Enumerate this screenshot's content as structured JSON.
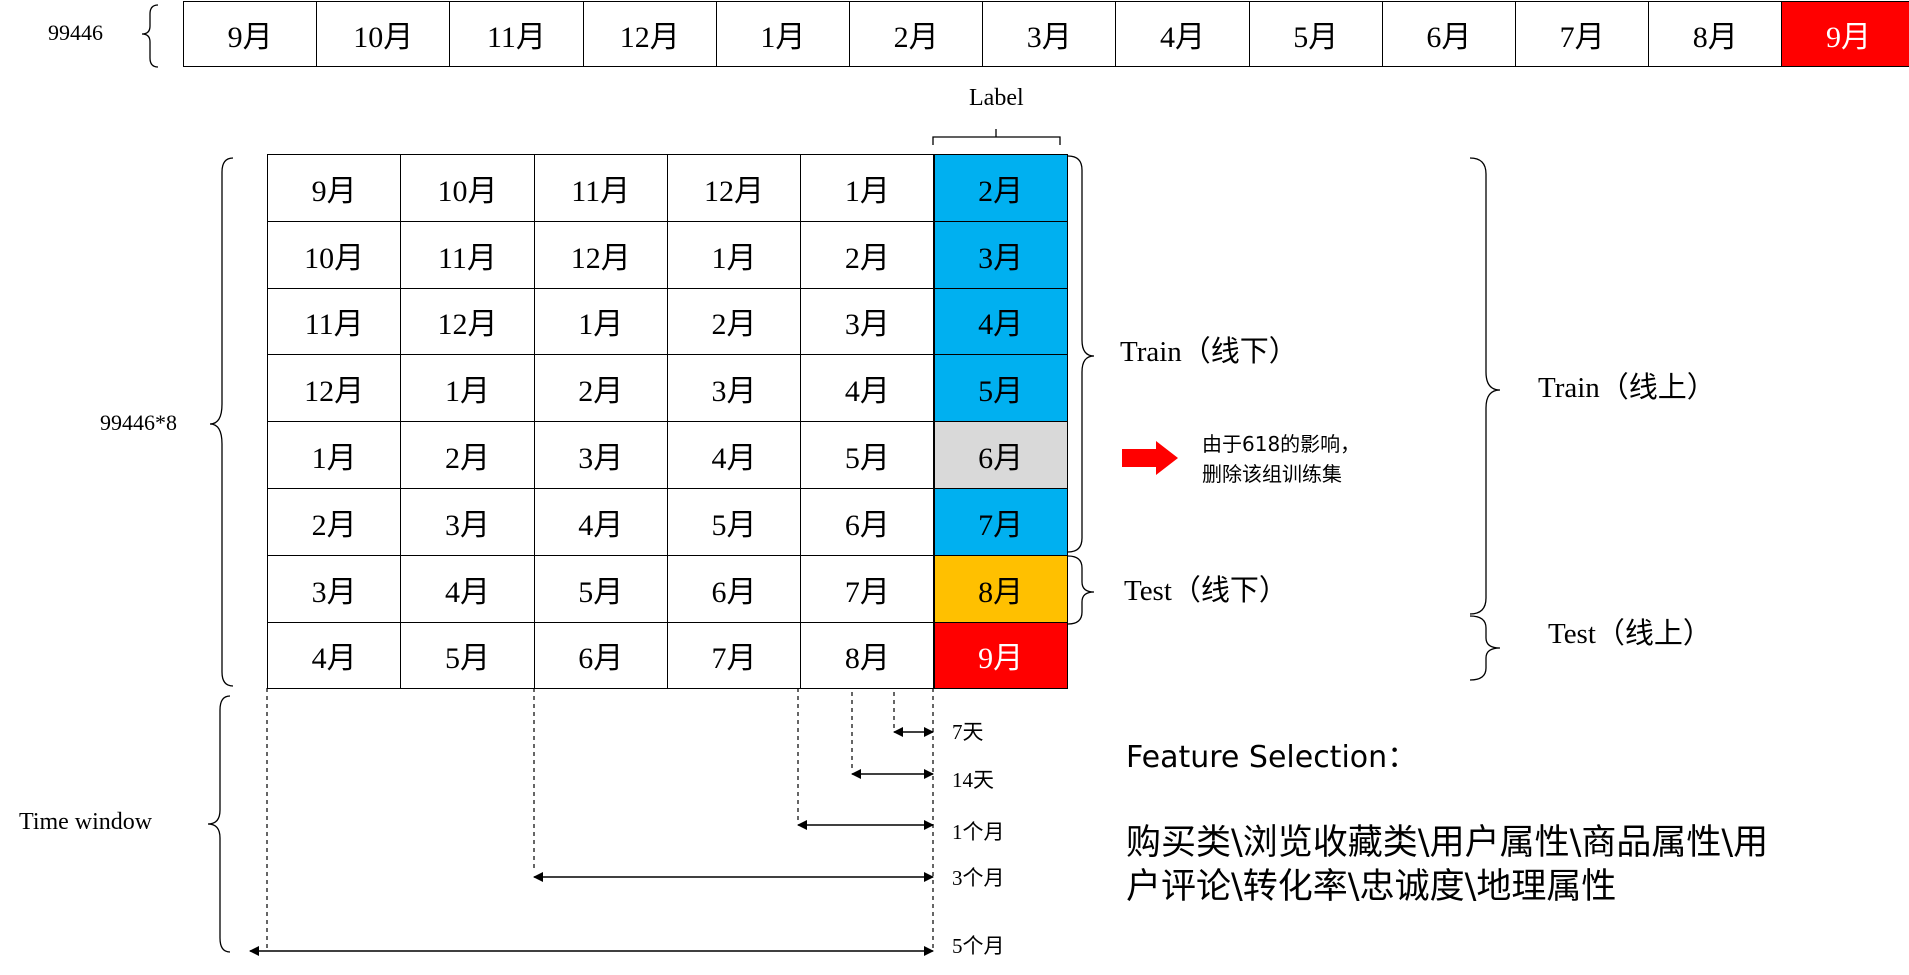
{
  "top_row": {
    "label": "99446",
    "months": [
      "9月",
      "10月",
      "11月",
      "12月",
      "1月",
      "2月",
      "3月",
      "4月",
      "5月",
      "6月",
      "7月",
      "8月",
      "9月"
    ]
  },
  "label_header": "Label",
  "grid": {
    "side_label": "99446*8",
    "rows": [
      {
        "features": [
          "9月",
          "10月",
          "11月",
          "12月",
          "1月"
        ],
        "label": "2月",
        "label_color": "#00b0f0"
      },
      {
        "features": [
          "10月",
          "11月",
          "12月",
          "1月",
          "2月"
        ],
        "label": "3月",
        "label_color": "#00b0f0"
      },
      {
        "features": [
          "11月",
          "12月",
          "1月",
          "2月",
          "3月"
        ],
        "label": "4月",
        "label_color": "#00b0f0"
      },
      {
        "features": [
          "12月",
          "1月",
          "2月",
          "3月",
          "4月"
        ],
        "label": "5月",
        "label_color": "#00b0f0"
      },
      {
        "features": [
          "1月",
          "2月",
          "3月",
          "4月",
          "5月"
        ],
        "label": "6月",
        "label_color": "#d9d9d9"
      },
      {
        "features": [
          "2月",
          "3月",
          "4月",
          "5月",
          "6月"
        ],
        "label": "7月",
        "label_color": "#00b0f0"
      },
      {
        "features": [
          "3月",
          "4月",
          "5月",
          "6月",
          "7月"
        ],
        "label": "8月",
        "label_color": "#ffc000"
      },
      {
        "features": [
          "4月",
          "5月",
          "6月",
          "7月",
          "8月"
        ],
        "label": "9月",
        "label_color": "#ff0000"
      }
    ]
  },
  "brackets": {
    "train_offline": "Train（线下）",
    "test_offline": "Test（线下）",
    "train_online": "Train（线上）",
    "test_online": "Test（线上）"
  },
  "note": {
    "line1": "由于618的影响，",
    "line2": "删除该组训练集",
    "arrow_color": "#ff0000"
  },
  "time_window": {
    "label": "Time window",
    "windows": [
      "7天",
      "14天",
      "1个月",
      "3个月",
      "5个月"
    ]
  },
  "feature_selection": {
    "title": "Feature Selection：",
    "line1": "购买类\\浏览收藏类\\用户属性\\商品属性\\用",
    "line2": "户评论\\转化率\\忠诚度\\地理属性"
  },
  "colors": {
    "highlight_red": "#ff0000",
    "label_blue": "#00b0f0",
    "removed_gray": "#d9d9d9",
    "test_orange": "#ffc000"
  }
}
